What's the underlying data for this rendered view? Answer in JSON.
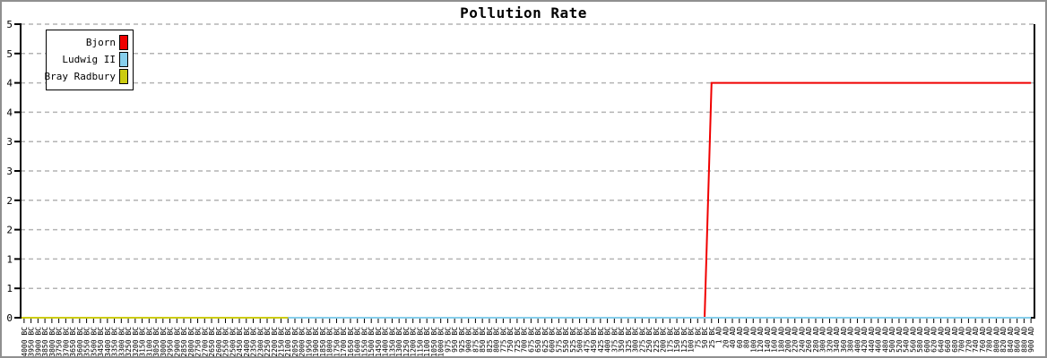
{
  "title": "Pollution Rate",
  "chart_data": {
    "type": "line",
    "title": "Pollution Rate",
    "xlabel": "",
    "ylabel": "",
    "ylim": [
      0,
      5
    ],
    "grid": "horizontal-dashed",
    "legend_position": "top-left",
    "colors": {
      "grid": "#b3b3b3",
      "axis": "#000000",
      "background": "#ffffff"
    },
    "y_axis": {
      "tick_values": [
        0,
        0.5,
        1,
        1.5,
        2,
        2.5,
        3,
        3.5,
        4,
        4.5,
        5
      ],
      "tick_labels": [
        "0",
        "1",
        "1",
        "2",
        "2",
        "3",
        "3",
        "4",
        "4",
        "5",
        "5"
      ]
    },
    "x_categories": [
      "4000 BC",
      "3950 BC",
      "3900 BC",
      "3850 BC",
      "3800 BC",
      "3750 BC",
      "3700 BC",
      "3650 BC",
      "3600 BC",
      "3550 BC",
      "3500 BC",
      "3450 BC",
      "3400 BC",
      "3350 BC",
      "3300 BC",
      "3250 BC",
      "3200 BC",
      "3150 BC",
      "3100 BC",
      "3050 BC",
      "3000 BC",
      "2950 BC",
      "2900 BC",
      "2850 BC",
      "2800 BC",
      "2750 BC",
      "2700 BC",
      "2650 BC",
      "2600 BC",
      "2550 BC",
      "2500 BC",
      "2450 BC",
      "2400 BC",
      "2350 BC",
      "2300 BC",
      "2250 BC",
      "2200 BC",
      "2150 BC",
      "2100 BC",
      "2050 BC",
      "2000 BC",
      "1950 BC",
      "1900 BC",
      "1850 BC",
      "1800 BC",
      "1750 BC",
      "1700 BC",
      "1650 BC",
      "1600 BC",
      "1550 BC",
      "1500 BC",
      "1450 BC",
      "1400 BC",
      "1350 BC",
      "1300 BC",
      "1250 BC",
      "1200 BC",
      "1150 BC",
      "1100 BC",
      "1050 BC",
      "1000 BC",
      "975 BC",
      "950 BC",
      "925 BC",
      "900 BC",
      "875 BC",
      "850 BC",
      "825 BC",
      "800 BC",
      "775 BC",
      "750 BC",
      "725 BC",
      "700 BC",
      "675 BC",
      "650 BC",
      "625 BC",
      "600 BC",
      "575 BC",
      "550 BC",
      "525 BC",
      "500 BC",
      "475 BC",
      "450 BC",
      "425 BC",
      "400 BC",
      "375 BC",
      "350 BC",
      "325 BC",
      "300 BC",
      "275 BC",
      "250 BC",
      "225 BC",
      "200 BC",
      "175 BC",
      "150 BC",
      "125 BC",
      "100 BC",
      "75 BC",
      "50 BC",
      "25 BC",
      "1 AD",
      "20 AD",
      "40 AD",
      "60 AD",
      "80 AD",
      "100 AD",
      "120 AD",
      "140 AD",
      "160 AD",
      "180 AD",
      "200 AD",
      "220 AD",
      "240 AD",
      "260 AD",
      "280 AD",
      "300 AD",
      "320 AD",
      "340 AD",
      "360 AD",
      "380 AD",
      "400 AD",
      "420 AD",
      "440 AD",
      "460 AD",
      "480 AD",
      "500 AD",
      "520 AD",
      "540 AD",
      "560 AD",
      "580 AD",
      "600 AD",
      "620 AD",
      "640 AD",
      "660 AD",
      "680 AD",
      "700 AD",
      "720 AD",
      "740 AD",
      "760 AD",
      "780 AD",
      "800 AD",
      "820 AD",
      "840 AD",
      "860 AD",
      "880 AD",
      "900 AD"
    ],
    "series": [
      {
        "name": "Bjorn",
        "color": "#f00000",
        "segments": [
          {
            "from": "4000 BC",
            "to": "50 BC",
            "value": 0
          },
          {
            "from": "25 BC",
            "to": "900 AD",
            "value": 4
          }
        ]
      },
      {
        "name": "Ludwig II",
        "color": "#87ceeb",
        "segments": [
          {
            "from": "2100 BC",
            "to": "900 AD",
            "value": 0
          }
        ]
      },
      {
        "name": "Bray Radbury",
        "color": "#cccc11",
        "segments": [
          {
            "from": "4000 BC",
            "to": "2100 BC",
            "value": 0
          }
        ]
      }
    ]
  }
}
